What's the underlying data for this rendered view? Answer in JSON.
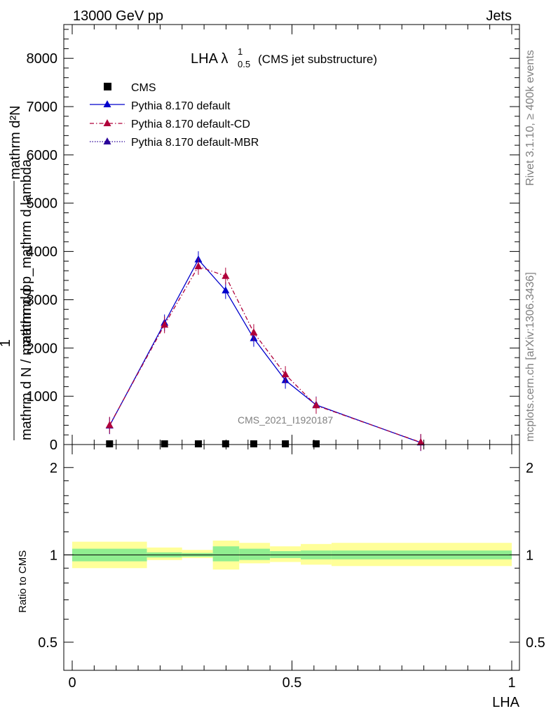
{
  "header": {
    "left": "13000 GeV pp",
    "right": "Jets"
  },
  "side": {
    "rivet": "Rivet 3.1.10, ≥ 400k events",
    "mcplots": "mcplots.cern.ch [arXiv:1306.3436]"
  },
  "watermark": "CMS_2021_I1920187",
  "title": {
    "main": "LHA λ",
    "sup": "1",
    "sub": "0.5",
    "rest": "(CMS jet substructure)"
  },
  "colors": {
    "default": "#0000cc",
    "cd": "#b0003a",
    "mbr": "#2a0099",
    "band_inner": "#90ee90",
    "band_outer": "#ffff99"
  },
  "chart_data": [
    {
      "type": "line",
      "ylabel_top": "mathrm d²N",
      "ylabel_mid": "mathrm d p_mathrm d lambda",
      "ylabel_num": "1",
      "ylabel_den": "mathrm d N / mathrm d p",
      "xlim": [
        0,
        1
      ],
      "ylim": [
        0,
        8700
      ],
      "yticks": [
        0,
        1000,
        2000,
        3000,
        4000,
        5000,
        6000,
        7000,
        8000
      ],
      "ytick_labels": [
        "0",
        "1000",
        "2000",
        "3000",
        "4000",
        "5000",
        "6000",
        "7000",
        "8000"
      ],
      "legend_placement": "top-left",
      "series": [
        {
          "name": "CMS",
          "style": "marker-square",
          "x": [
            0.085,
            0.21,
            0.287,
            0.349,
            0.413,
            0.485,
            0.555
          ],
          "y": [
            0,
            0,
            0,
            0,
            0,
            0,
            0
          ]
        },
        {
          "name": "Pythia 8.170 default",
          "style": "solid",
          "x": [
            0.085,
            0.21,
            0.287,
            0.349,
            0.413,
            0.485,
            0.555,
            0.793
          ],
          "y": [
            390,
            2520,
            3830,
            3190,
            2200,
            1330,
            820,
            40
          ]
        },
        {
          "name": "Pythia 8.170 default-CD",
          "style": "dashdot",
          "x": [
            0.085,
            0.21,
            0.287,
            0.349,
            0.413,
            0.485,
            0.555,
            0.793
          ],
          "y": [
            400,
            2480,
            3690,
            3490,
            2320,
            1450,
            810,
            45
          ]
        },
        {
          "name": "Pythia 8.170 default-MBR",
          "style": "dotted",
          "x": [],
          "y": []
        }
      ]
    },
    {
      "type": "area",
      "ylabel": "Ratio to CMS",
      "xlabel": "LHA",
      "xlim": [
        0,
        1
      ],
      "ylim": [
        0.4,
        2.4
      ],
      "log_scale": true,
      "yticks": [
        0.5,
        1,
        2
      ],
      "ytick_labels": [
        "0.5",
        "1",
        "2"
      ],
      "xticks": [
        0,
        0.5,
        1
      ],
      "xtick_labels": [
        "0",
        "0.5",
        "1"
      ],
      "bins": [
        {
          "x0": 0.0,
          "x1": 0.17,
          "inner": [
            0.95,
            1.05
          ],
          "outer": [
            0.9,
            1.11
          ]
        },
        {
          "x0": 0.17,
          "x1": 0.25,
          "inner": [
            0.98,
            1.02
          ],
          "outer": [
            0.96,
            1.06
          ]
        },
        {
          "x0": 0.25,
          "x1": 0.32,
          "inner": [
            0.985,
            1.015
          ],
          "outer": [
            0.975,
            1.04
          ]
        },
        {
          "x0": 0.32,
          "x1": 0.38,
          "inner": [
            0.95,
            1.07
          ],
          "outer": [
            0.89,
            1.12
          ]
        },
        {
          "x0": 0.38,
          "x1": 0.45,
          "inner": [
            0.96,
            1.05
          ],
          "outer": [
            0.935,
            1.1
          ]
        },
        {
          "x0": 0.45,
          "x1": 0.52,
          "inner": [
            0.975,
            1.03
          ],
          "outer": [
            0.945,
            1.07
          ]
        },
        {
          "x0": 0.52,
          "x1": 0.59,
          "inner": [
            0.965,
            1.035
          ],
          "outer": [
            0.925,
            1.09
          ]
        },
        {
          "x0": 0.59,
          "x1": 1.0,
          "inner": [
            0.965,
            1.035
          ],
          "outer": [
            0.915,
            1.1
          ]
        }
      ]
    }
  ]
}
